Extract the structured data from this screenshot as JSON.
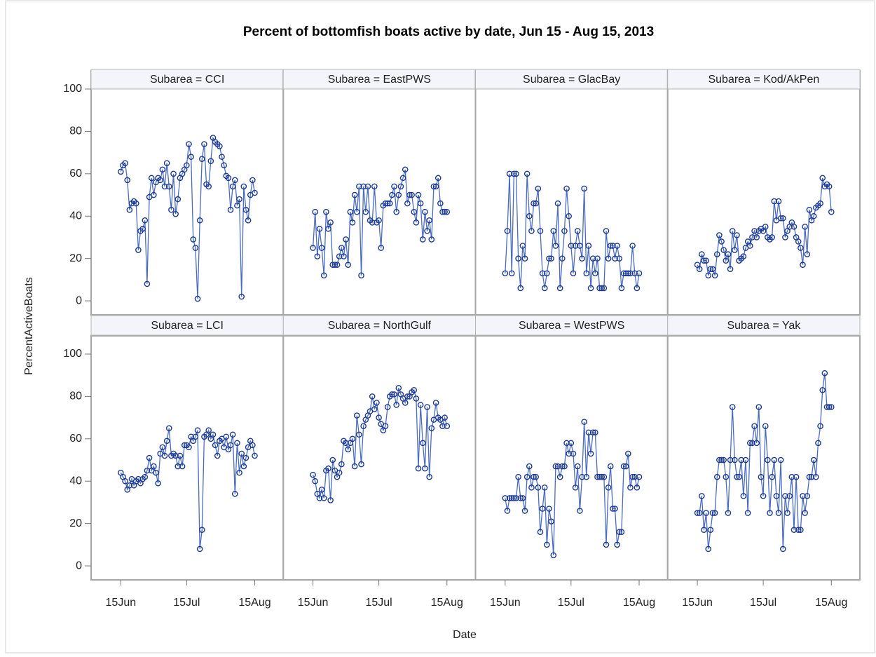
{
  "chart_data": {
    "type": "line",
    "title": "Percent of bottomfish boats active by date, Jun 15 - Aug 15, 2013",
    "x_label": "Date",
    "y_label": "PercentActiveBoats",
    "line_color": "#4a6cc0",
    "marker_color": "#1c3a94",
    "x": [
      0,
      1,
      2,
      3,
      4,
      5,
      6,
      7,
      8,
      9,
      10,
      11,
      12,
      13,
      14,
      15,
      16,
      17,
      18,
      19,
      20,
      21,
      22,
      23,
      24,
      25,
      26,
      27,
      28,
      29,
      30,
      31,
      32,
      33,
      34,
      35,
      36,
      37,
      38,
      39,
      40,
      41,
      42,
      43,
      44,
      45,
      46,
      47,
      48,
      49,
      50,
      51,
      52,
      53,
      54,
      55,
      56,
      57,
      58,
      59,
      60,
      61
    ],
    "xlim": [
      -13.5,
      74
    ],
    "xticks": [
      {
        "value": 0,
        "label": "15Jun"
      },
      {
        "value": 30,
        "label": "15Jul"
      },
      {
        "value": 61,
        "label": "15Aug"
      }
    ],
    "ylim": [
      -6.6,
      108.6
    ],
    "yticks": [
      0,
      20,
      40,
      60,
      80,
      100
    ],
    "panels": [
      {
        "label": "Subarea = CCI",
        "values": [
          61,
          64,
          65,
          57,
          43,
          46,
          47,
          46,
          24,
          33,
          34,
          38,
          8,
          49,
          58,
          50,
          56,
          58,
          57,
          62,
          54,
          65,
          54,
          43,
          60,
          41,
          48,
          58,
          60,
          62,
          64,
          74,
          68,
          29,
          25,
          1,
          38,
          67,
          74,
          55,
          54,
          66,
          77,
          75,
          74,
          73,
          68,
          64,
          59,
          58,
          43,
          54,
          57,
          45,
          48,
          2,
          54,
          43,
          38,
          50,
          57,
          51
        ]
      },
      {
        "label": "Subarea = EastPWS",
        "values": [
          25,
          42,
          21,
          34,
          25,
          12,
          42,
          34,
          37,
          17,
          17,
          17,
          21,
          25,
          21,
          29,
          17,
          42,
          37,
          50,
          42,
          54,
          12,
          54,
          42,
          54,
          38,
          37,
          54,
          37,
          38,
          25,
          45,
          46,
          46,
          46,
          50,
          54,
          42,
          50,
          54,
          58,
          62,
          46,
          50,
          50,
          42,
          37,
          50,
          46,
          29,
          42,
          33,
          38,
          29,
          54,
          54,
          58,
          46,
          42,
          42,
          42
        ]
      },
      {
        "label": "Subarea = GlacBay",
        "values": [
          13,
          33,
          60,
          13,
          60,
          60,
          20,
          6,
          26,
          20,
          60,
          40,
          33,
          46,
          46,
          53,
          33,
          13,
          6,
          13,
          20,
          20,
          33,
          26,
          46,
          6,
          20,
          33,
          53,
          40,
          26,
          13,
          26,
          33,
          26,
          20,
          53,
          13,
          26,
          6,
          20,
          13,
          20,
          6,
          6,
          6,
          33,
          20,
          26,
          26,
          20,
          26,
          20,
          6,
          13,
          13,
          13,
          13,
          26,
          13,
          6,
          13
        ]
      },
      {
        "label": "Subarea = Kod/AkPen",
        "values": [
          17,
          15,
          22,
          19,
          19,
          12,
          15,
          15,
          12,
          22,
          31,
          28,
          24,
          19,
          22,
          15,
          33,
          24,
          31,
          19,
          20,
          21,
          25,
          28,
          26,
          30,
          33,
          30,
          33,
          34,
          33,
          35,
          30,
          29,
          30,
          47,
          38,
          47,
          39,
          39,
          30,
          33,
          35,
          37,
          35,
          30,
          28,
          25,
          17,
          35,
          22,
          43,
          38,
          40,
          44,
          45,
          46,
          58,
          54,
          55,
          54,
          42
        ]
      },
      {
        "label": "Subarea = LCI",
        "values": [
          44,
          42,
          40,
          36,
          38,
          41,
          38,
          40,
          41,
          39,
          41,
          42,
          45,
          51,
          45,
          47,
          44,
          39,
          53,
          56,
          52,
          59,
          65,
          52,
          53,
          52,
          47,
          52,
          47,
          57,
          57,
          56,
          61,
          59,
          61,
          64,
          8,
          17,
          61,
          62,
          64,
          60,
          62,
          57,
          52,
          59,
          60,
          56,
          61,
          55,
          57,
          62,
          34,
          58,
          44,
          53,
          47,
          51,
          56,
          59,
          57,
          52
        ]
      },
      {
        "label": "Subarea = NorthGulf",
        "values": [
          43,
          40,
          34,
          32,
          36,
          32,
          45,
          46,
          31,
          50,
          45,
          42,
          44,
          48,
          59,
          58,
          55,
          58,
          60,
          47,
          71,
          62,
          48,
          66,
          69,
          71,
          73,
          80,
          74,
          77,
          70,
          67,
          64,
          66,
          75,
          80,
          81,
          81,
          76,
          84,
          81,
          79,
          77,
          80,
          80,
          82,
          83,
          79,
          46,
          76,
          58,
          46,
          75,
          42,
          65,
          69,
          77,
          70,
          69,
          66,
          70,
          66
        ]
      },
      {
        "label": "Subarea = WestPWS",
        "values": [
          32,
          26,
          32,
          32,
          32,
          32,
          42,
          32,
          32,
          26,
          42,
          47,
          37,
          42,
          42,
          37,
          16,
          27,
          37,
          10,
          27,
          21,
          5,
          47,
          47,
          42,
          47,
          47,
          58,
          53,
          58,
          53,
          37,
          47,
          26,
          42,
          68,
          42,
          63,
          53,
          63,
          63,
          42,
          42,
          42,
          42,
          10,
          37,
          47,
          27,
          27,
          10,
          16,
          16,
          47,
          47,
          53,
          37,
          42,
          42,
          37,
          42
        ]
      },
      {
        "label": "Subarea = Yak",
        "values": [
          25,
          25,
          33,
          17,
          25,
          8,
          17,
          25,
          25,
          42,
          50,
          50,
          50,
          42,
          25,
          50,
          75,
          50,
          42,
          42,
          50,
          33,
          50,
          25,
          58,
          58,
          66,
          58,
          75,
          42,
          33,
          66,
          50,
          25,
          42,
          50,
          33,
          25,
          50,
          8,
          33,
          25,
          33,
          42,
          17,
          42,
          17,
          17,
          33,
          25,
          33,
          42,
          42,
          50,
          42,
          58,
          66,
          83,
          91,
          75,
          75,
          75
        ]
      }
    ]
  }
}
